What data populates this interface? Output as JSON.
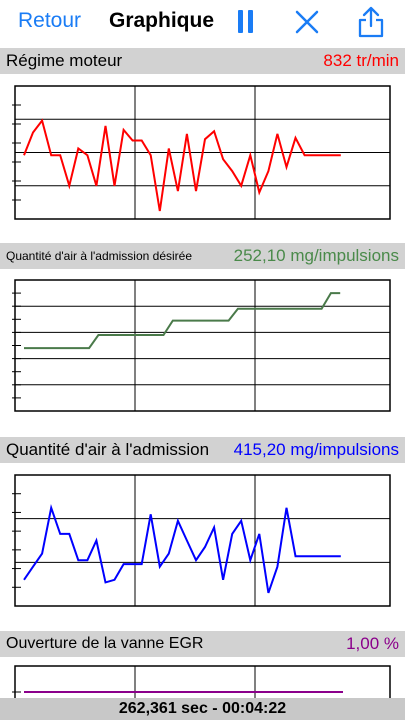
{
  "nav": {
    "back_label": "Retour",
    "title": "Graphique",
    "pause_icon": "pause-icon",
    "close_icon": "close-icon",
    "share_icon": "share-icon",
    "accent_color": "#1a7cf5"
  },
  "sections": [
    {
      "label": "Régime moteur",
      "value": "832 tr/min",
      "value_color": "#ff0000"
    },
    {
      "label": "Quantité d'air à l'admission désirée",
      "value": "252,10 mg/impulsions",
      "value_color": "#4a8a4a"
    },
    {
      "label": "Quantité d'air à l'admission",
      "value": "415,20 mg/impulsions",
      "value_color": "#0000ff"
    },
    {
      "label": "Ouverture de la vanne EGR",
      "value": "1,00 %",
      "value_color": "#8b008b"
    }
  ],
  "chart_data": [
    {
      "type": "line",
      "color": "#ff0000",
      "grid": true,
      "ylim": [
        0,
        100
      ],
      "x": [
        0,
        1,
        2,
        3,
        4,
        5,
        6,
        7,
        8,
        9,
        10,
        11,
        12,
        13,
        14,
        15,
        16,
        17,
        18,
        19,
        20,
        21,
        22,
        23,
        24,
        25,
        26,
        27,
        28,
        29,
        30,
        31,
        32,
        33,
        34,
        35
      ],
      "values": [
        48,
        65,
        74,
        48,
        48,
        25,
        53,
        48,
        25,
        70,
        25,
        67,
        59,
        59,
        48,
        6,
        53,
        21,
        64,
        21,
        60,
        66,
        45,
        36,
        25,
        48,
        20,
        36,
        64,
        39,
        61,
        48,
        48,
        48,
        48,
        48
      ]
    },
    {
      "type": "line",
      "color": "#4a7a4a",
      "grid": true,
      "ylim": [
        0,
        100
      ],
      "x": [
        0,
        1,
        2,
        3,
        4,
        5,
        6,
        7,
        8,
        9,
        10,
        11,
        12,
        13,
        14,
        15,
        16,
        17,
        18,
        19,
        20,
        21,
        22,
        23,
        24,
        25,
        26,
        27,
        28,
        29,
        30,
        31,
        32,
        33,
        34
      ],
      "values": [
        48,
        48,
        48,
        48,
        48,
        48,
        48,
        48,
        58,
        58,
        58,
        58,
        58,
        58,
        58,
        58,
        69,
        69,
        69,
        69,
        69,
        69,
        69,
        78,
        78,
        78,
        78,
        78,
        78,
        78,
        78,
        78,
        78,
        90,
        90
      ]
    },
    {
      "type": "line",
      "color": "#0000ff",
      "grid": true,
      "ylim": [
        0,
        100
      ],
      "x": [
        0,
        1,
        2,
        3,
        4,
        5,
        6,
        7,
        8,
        9,
        10,
        11,
        12,
        13,
        14,
        15,
        16,
        17,
        18,
        19,
        20,
        21,
        22,
        23,
        24,
        25,
        26,
        27,
        28,
        29,
        30,
        31,
        32,
        33,
        34,
        35
      ],
      "values": [
        20,
        30,
        40,
        75,
        55,
        55,
        35,
        35,
        50,
        18,
        20,
        32,
        32,
        32,
        70,
        30,
        40,
        65,
        50,
        35,
        45,
        60,
        20,
        55,
        65,
        35,
        55,
        10,
        30,
        75,
        38,
        38,
        38,
        38,
        38,
        38
      ]
    },
    {
      "type": "line",
      "color": "#8b008b",
      "grid": true,
      "ylim": [
        0,
        100
      ],
      "x": [
        0,
        1
      ],
      "values": [
        50,
        50
      ]
    }
  ],
  "footer": {
    "text": "262,361 sec - 00:04:22"
  }
}
